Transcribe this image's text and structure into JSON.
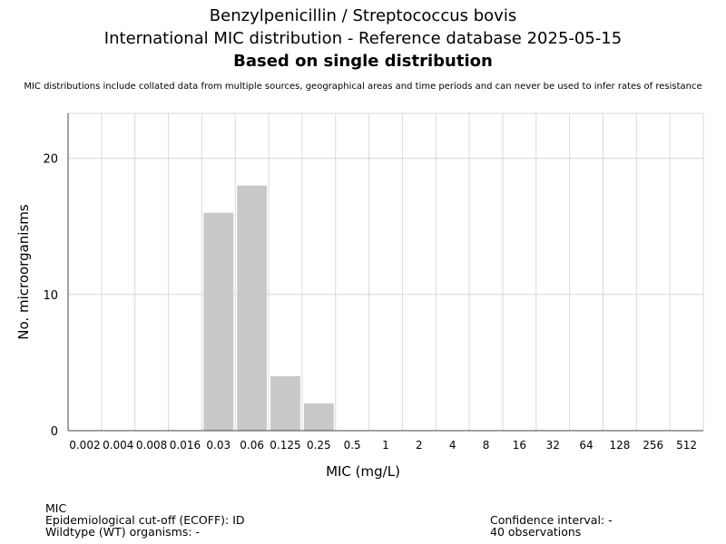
{
  "title": {
    "line1": "Benzylpenicillin / Streptococcus bovis",
    "line2": "International MIC distribution - Reference database 2025-05-15",
    "line3": "Based on single distribution"
  },
  "note": "MIC distributions include collated data from multiple sources, geographical areas and time periods and can never be used to infer rates of resistance",
  "chart_data": {
    "type": "bar",
    "categories": [
      "0.002",
      "0.004",
      "0.008",
      "0.016",
      "0.03",
      "0.06",
      "0.125",
      "0.25",
      "0.5",
      "1",
      "2",
      "4",
      "8",
      "16",
      "32",
      "64",
      "128",
      "256",
      "512"
    ],
    "values": [
      0,
      0,
      0,
      0,
      16,
      18,
      4,
      2,
      0,
      0,
      0,
      0,
      0,
      0,
      0,
      0,
      0,
      0,
      0
    ],
    "xlabel": "MIC (mg/L)",
    "ylabel": "No. microorganisms",
    "ylim": [
      0,
      23.3
    ],
    "yticks": [
      0,
      10,
      20
    ],
    "grid": true,
    "bar_color": "#c8c8c8",
    "grid_color": "#d9d9d9"
  },
  "footer": {
    "mic": "MIC",
    "ecoff": "Epidemiological cut-off (ECOFF): ID",
    "wildtype": "Wildtype (WT) organisms:  -",
    "confidence": "Confidence interval: -",
    "observations": "40 observations"
  }
}
